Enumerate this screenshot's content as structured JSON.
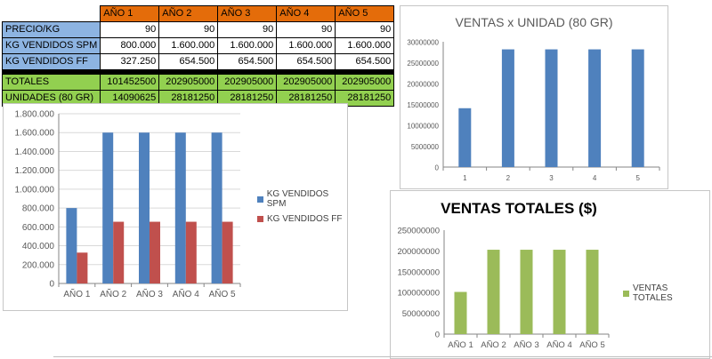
{
  "table": {
    "headers": [
      "AÑO 1",
      "AÑO 2",
      "AÑO 3",
      "AÑO 4",
      "AÑO 5"
    ],
    "rows": [
      {
        "label": "PRECIO/KG",
        "values": [
          "90",
          "90",
          "90",
          "90",
          "90"
        ]
      },
      {
        "label": "KG VENDIDOS SPM",
        "values": [
          "800.000",
          "1.600.000",
          "1.600.000",
          "1.600.000",
          "1.600.000"
        ]
      },
      {
        "label": "KG VENDIDOS FF",
        "values": [
          "327.250",
          "654.500",
          "654.500",
          "654.500",
          "654.500"
        ]
      },
      {
        "label": "TOTALES",
        "values": [
          "101452500",
          "202905000",
          "202905000",
          "202905000",
          "202905000"
        ]
      },
      {
        "label": "UNIDADES (80 GR)",
        "values": [
          "14090625",
          "28181250",
          "28181250",
          "28181250",
          "28181250"
        ]
      }
    ]
  },
  "chart_data": [
    {
      "id": "kg",
      "type": "bar",
      "title": "",
      "categories": [
        "AÑO 1",
        "AÑO 2",
        "AÑO 3",
        "AÑO 4",
        "AÑO 5"
      ],
      "series": [
        {
          "name": "KG VENDIDOS SPM",
          "values": [
            800000,
            1600000,
            1600000,
            1600000,
            1600000
          ],
          "color": "#4f81bd"
        },
        {
          "name": "KG VENDIDOS FF",
          "values": [
            327250,
            654500,
            654500,
            654500,
            654500
          ],
          "color": "#c0504d"
        }
      ],
      "ylim": [
        0,
        1800000
      ],
      "yticks": [
        0,
        200000,
        400000,
        600000,
        800000,
        1000000,
        1200000,
        1400000,
        1600000,
        1800000
      ],
      "ytick_labels": [
        "0",
        "200.000",
        "400.000",
        "600.000",
        "800.000",
        "1.000.000",
        "1.200.000",
        "1.400.000",
        "1.600.000",
        "1.800.000"
      ],
      "legend": "right"
    },
    {
      "id": "unidad",
      "type": "bar",
      "title": "VENTAS x UNIDAD (80 GR)",
      "categories": [
        "1",
        "2",
        "3",
        "4",
        "5"
      ],
      "series": [
        {
          "name": "UNIDADES (80 GR)",
          "values": [
            14090625,
            28181250,
            28181250,
            28181250,
            28181250
          ],
          "color": "#4f81bd"
        }
      ],
      "ylim": [
        0,
        30000000
      ],
      "yticks": [
        0,
        5000000,
        10000000,
        15000000,
        20000000,
        25000000,
        30000000
      ],
      "ytick_labels": [
        "0",
        "5000000",
        "10000000",
        "15000000",
        "20000000",
        "25000000",
        "30000000"
      ],
      "legend": "none"
    },
    {
      "id": "totales",
      "type": "bar",
      "title": "VENTAS TOTALES ($)",
      "categories": [
        "AÑO 1",
        "AÑO 2",
        "AÑO 3",
        "AÑO 4",
        "AÑO 5"
      ],
      "series": [
        {
          "name": "VENTAS TOTALES",
          "values": [
            101452500,
            202905000,
            202905000,
            202905000,
            202905000
          ],
          "color": "#9bbb59"
        }
      ],
      "ylim": [
        0,
        250000000
      ],
      "yticks": [
        0,
        50000000,
        100000000,
        150000000,
        200000000,
        250000000
      ],
      "ytick_labels": [
        "0",
        "50000000",
        "100000000",
        "150000000",
        "200000000",
        "250000000"
      ],
      "legend": "right"
    }
  ]
}
